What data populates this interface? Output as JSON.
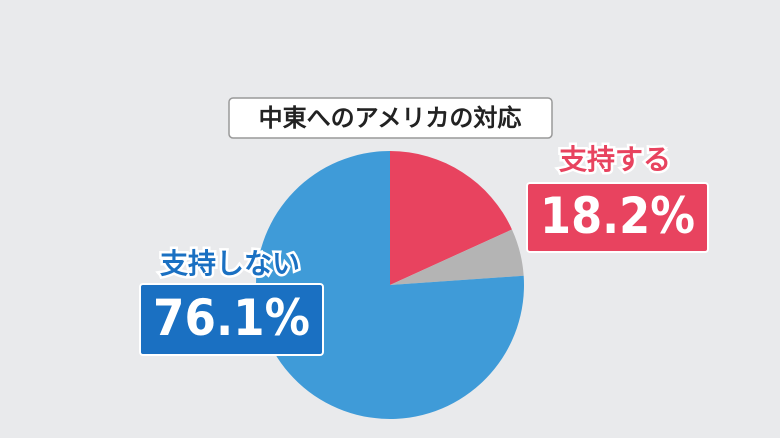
{
  "chart_data": {
    "type": "pie",
    "title": "中東へのアメリカの対応",
    "categories": [
      "支持する",
      null,
      "支持しない"
    ],
    "values": [
      18.2,
      5.7,
      76.1
    ],
    "value_labels": [
      "18.2%",
      null,
      "76.1%"
    ],
    "colors": [
      "#e8435f",
      "#b4b4b4",
      "#3f9bd8"
    ]
  }
}
